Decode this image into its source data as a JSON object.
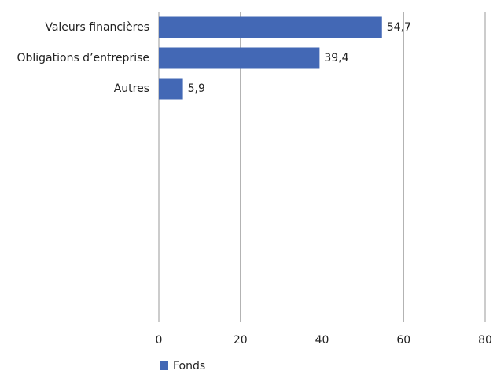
{
  "chart_data": {
    "type": "hbar",
    "categories": [
      "Valeurs financières",
      "Obligations d’entreprise",
      "Autres"
    ],
    "series": [
      {
        "name": "Fonds",
        "color": "#4368b5",
        "values": [
          54.7,
          39.4,
          5.9
        ],
        "value_labels": [
          "54,7",
          "39,4",
          "5,9"
        ]
      }
    ],
    "xlim": [
      0,
      80
    ],
    "xticks": [
      0,
      20,
      40,
      60,
      80
    ],
    "grid": true,
    "legend": "bottom-left"
  }
}
